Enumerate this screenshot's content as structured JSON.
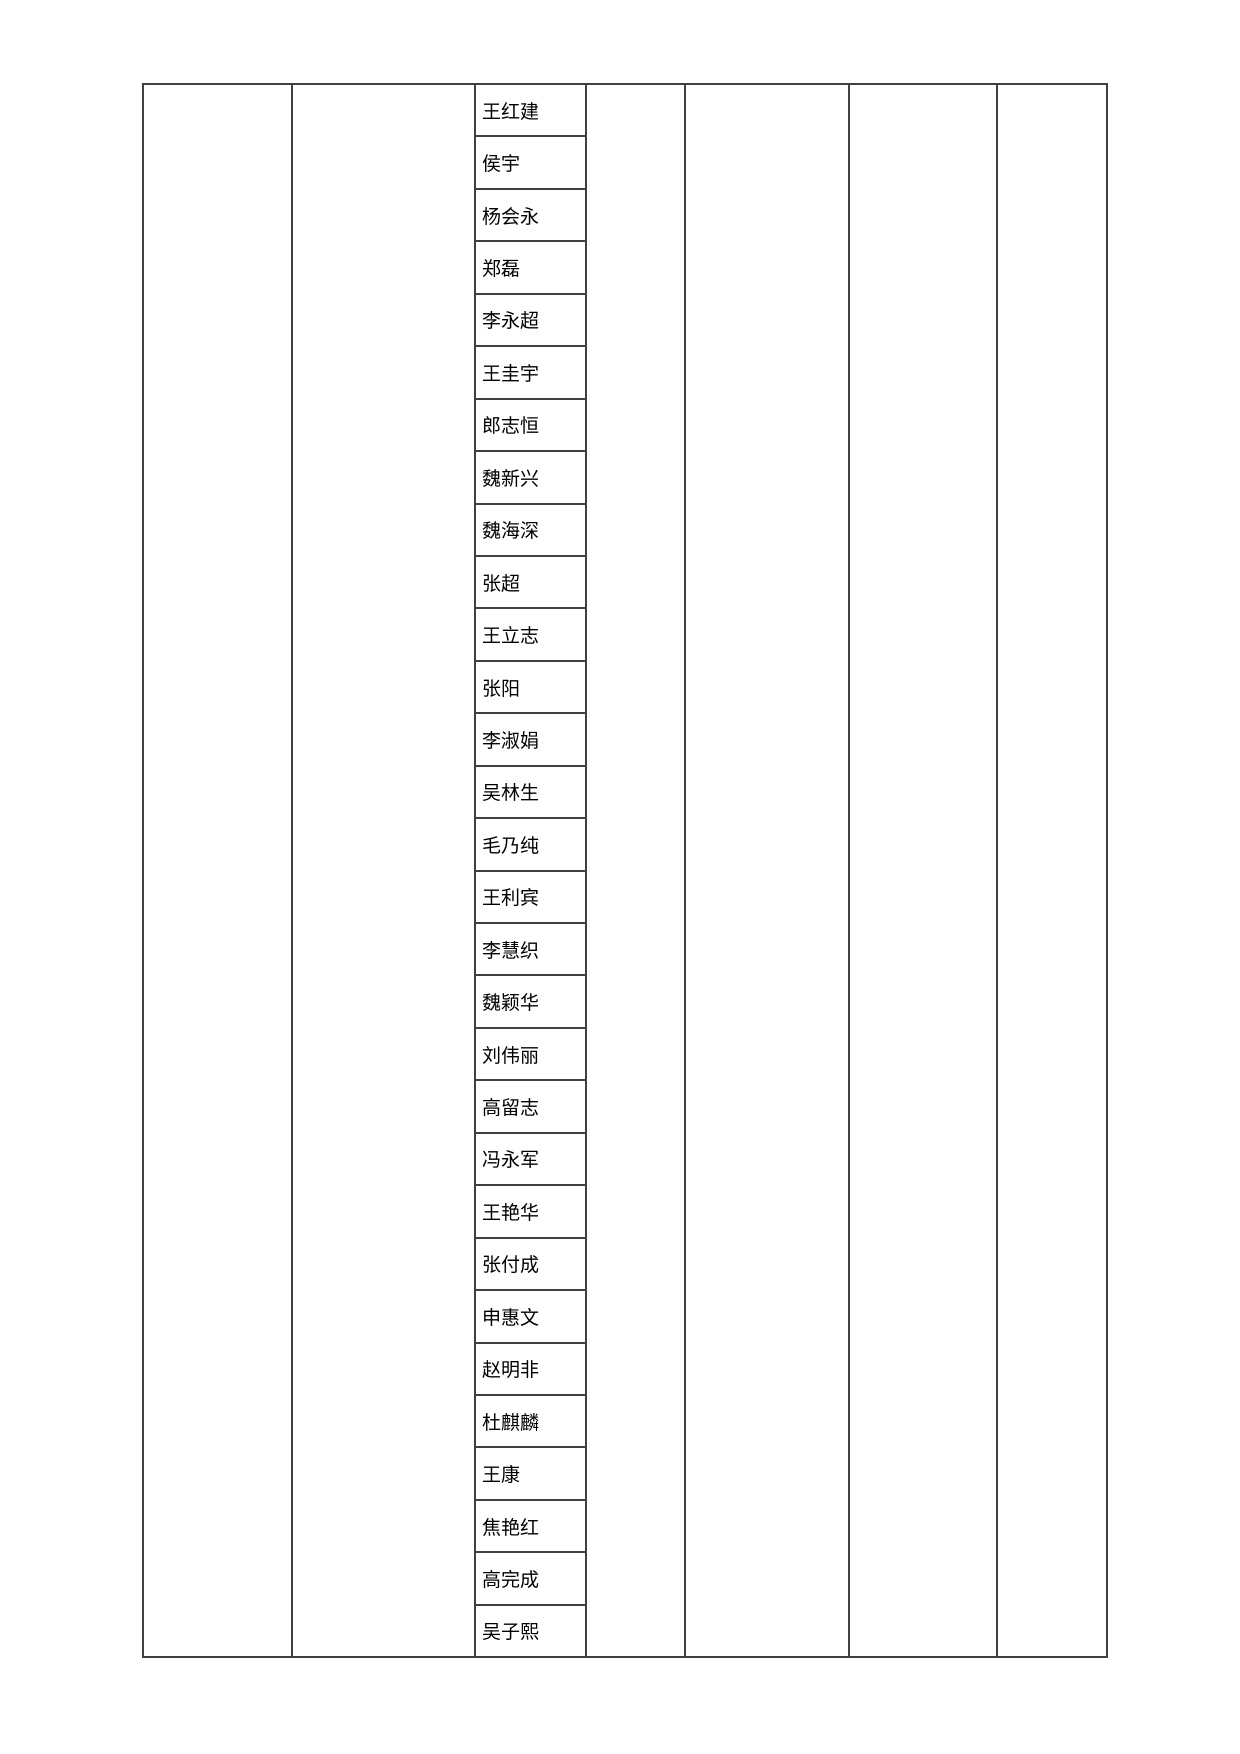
{
  "names": [
    "王红建",
    "侯宇",
    "杨会永",
    "郑磊",
    "李永超",
    "王圭宇",
    "郎志恒",
    "魏新兴",
    "魏海深",
    "张超",
    "王立志",
    "张阳",
    "李淑娟",
    "吴林生",
    "毛乃纯",
    "王利宾",
    "李慧织",
    "魏颖华",
    "刘伟丽",
    "高留志",
    "冯永军",
    "王艳华",
    "张付成",
    "申惠文",
    "赵明非",
    "杜麒麟",
    "王康",
    "焦艳红",
    "高完成",
    "吴子熙"
  ],
  "border_color": "#404040"
}
